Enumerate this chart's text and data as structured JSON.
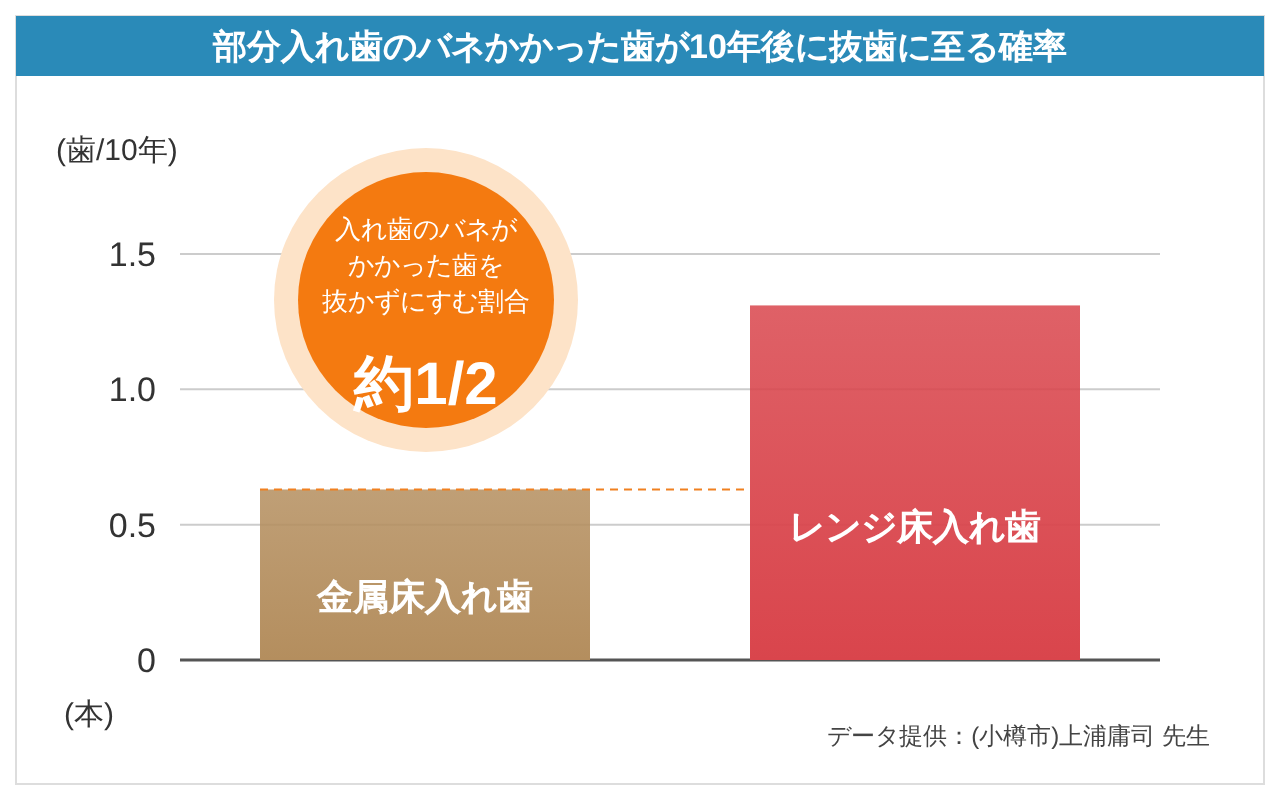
{
  "chart_data": {
    "type": "bar",
    "title": "部分入れ歯のバネかかった歯が10年後に抜歯に至る確率",
    "ylabel": "(歯/10年)",
    "categories": [
      "金属床入れ歯",
      "レンジ床入れ歯"
    ],
    "values": [
      0.63,
      1.31
    ],
    "colors": [
      "#b48e5e",
      "#d9454c"
    ],
    "ylim": [
      0,
      1.5
    ],
    "yticks": [
      0,
      0.5,
      {
        "value": 1,
        "label": "1.0"
      },
      1.5
    ],
    "grid": "y",
    "ref_lines": [
      {
        "axis": "y",
        "value": 0.63,
        "color": "#f08020",
        "line_style": "dashed"
      }
    ],
    "annotations": [
      "入れ歯のバネが",
      "かかった歯を",
      "抜かずにすむ割合",
      "約1/2",
      "(本)",
      "データ提供：(小樽市)上浦庸司 先生"
    ]
  }
}
